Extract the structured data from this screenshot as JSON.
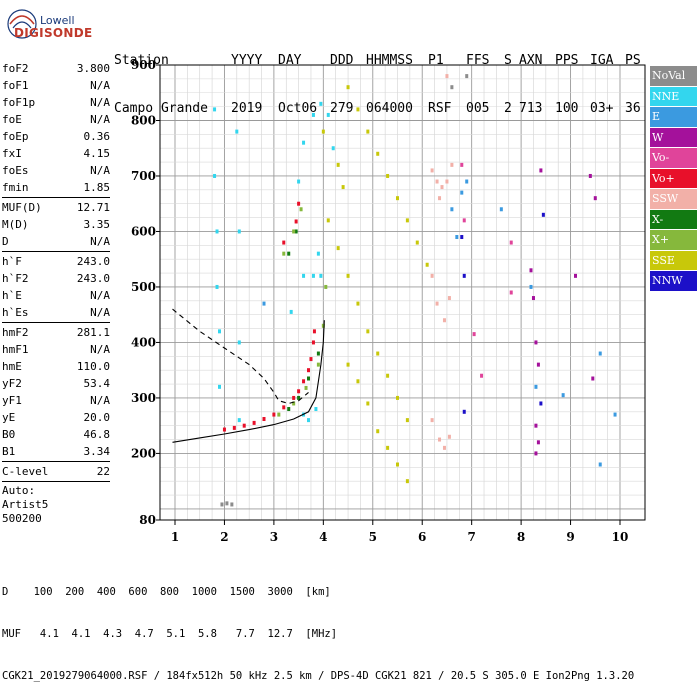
{
  "logo": {
    "top": "Lowell",
    "bottom": "DIGISONDE"
  },
  "header": {
    "row1": [
      "Station",
      "YYYY",
      "DAY",
      "DDD",
      "HHMMSS",
      "P1",
      "FFS",
      "S",
      "AXN",
      "PPS",
      "IGA",
      "PS"
    ],
    "row2": [
      "Campo Grande",
      "2019",
      "Oct06",
      "279",
      "064000",
      "RSF",
      "005",
      "2",
      "713",
      "100",
      "03+",
      "36"
    ]
  },
  "params": {
    "group1": [
      {
        "name": "foF2",
        "value": "3.800"
      },
      {
        "name": "foF1",
        "value": "N/A"
      },
      {
        "name": "foF1p",
        "value": "N/A"
      },
      {
        "name": "foE",
        "value": "N/A"
      },
      {
        "name": "foEp",
        "value": "0.36"
      },
      {
        "name": "fxI",
        "value": "4.15"
      },
      {
        "name": "foEs",
        "value": "N/A"
      },
      {
        "name": "fmin",
        "value": "1.85"
      }
    ],
    "group2": [
      {
        "name": "MUF(D)",
        "value": "12.71"
      },
      {
        "name": "M(D)",
        "value": "3.35"
      },
      {
        "name": "D",
        "value": "N/A"
      }
    ],
    "group3": [
      {
        "name": "h`F",
        "value": "243.0"
      },
      {
        "name": "h`F2",
        "value": "243.0"
      },
      {
        "name": "h`E",
        "value": "N/A"
      },
      {
        "name": "h`Es",
        "value": "N/A"
      }
    ],
    "group4": [
      {
        "name": "hmF2",
        "value": "281.1"
      },
      {
        "name": "hmF1",
        "value": "N/A"
      },
      {
        "name": "hmE",
        "value": "110.0"
      },
      {
        "name": "yF2",
        "value": "53.4"
      },
      {
        "name": "yF1",
        "value": "N/A"
      },
      {
        "name": "yE",
        "value": "20.0"
      },
      {
        "name": "B0",
        "value": "46.8"
      },
      {
        "name": "B1",
        "value": "3.34"
      }
    ],
    "group5": [
      {
        "name": "C-level",
        "value": "22"
      }
    ]
  },
  "autoscaling": {
    "line1": "Auto:",
    "line2": "Artist5",
    "line3": "500200"
  },
  "legend": [
    {
      "label": "NoVal",
      "color": "#8c8c8c"
    },
    {
      "label": "NNE",
      "color": "#33d6ee"
    },
    {
      "label": "E",
      "color": "#3b9ae0"
    },
    {
      "label": "W",
      "color": "#a4119b"
    },
    {
      "label": "Vo-",
      "color": "#e0449a"
    },
    {
      "label": "Vo+",
      "color": "#e8102a"
    },
    {
      "label": "SSW",
      "color": "#f2b0a8"
    },
    {
      "label": "X-",
      "color": "#127a12"
    },
    {
      "label": "X+",
      "color": "#86b83c"
    },
    {
      "label": "SSE",
      "color": "#c8c80a"
    },
    {
      "label": "NNW",
      "color": "#1c10c8"
    }
  ],
  "footer": {
    "d_row": "D    100  200  400  600  800  1000  1500  3000  [km]",
    "muf_row": "MUF   4.1  4.1  4.3  4.7  5.1  5.8   7.7  12.7  [MHz]",
    "file_row": "CGK21_2019279064000.RSF / 184fx512h 50 kHz 2.5 km / DPS-4D CGK21 821 / 20.5 S 305.0 E Ion2Png 1.3.20"
  },
  "chart_data": {
    "type": "scatter",
    "title": "",
    "xlabel": "",
    "ylabel": "",
    "xlim": [
      0.75,
      10.1
    ],
    "ylim": [
      80,
      900
    ],
    "x_ticks": [
      "1",
      "2",
      "3",
      "4",
      "5",
      "6",
      "7",
      "8",
      "9",
      "10"
    ],
    "y_ticks": [
      "80",
      "200",
      "300",
      "400",
      "500",
      "600",
      "700",
      "800",
      "900"
    ],
    "grid": true,
    "series": [
      {
        "name": "NNE",
        "color": "#33d6ee",
        "points": [
          [
            1.8,
            820
          ],
          [
            1.8,
            700
          ],
          [
            1.85,
            600
          ],
          [
            1.85,
            500
          ],
          [
            1.9,
            420
          ],
          [
            1.9,
            320
          ],
          [
            2.25,
            780
          ],
          [
            2.3,
            600
          ],
          [
            2.3,
            400
          ],
          [
            2.3,
            260
          ],
          [
            3.35,
            455
          ],
          [
            3.6,
            520
          ],
          [
            3.8,
            520
          ],
          [
            3.9,
            560
          ],
          [
            3.95,
            520
          ],
          [
            3.6,
            270
          ],
          [
            3.7,
            260
          ],
          [
            3.85,
            280
          ],
          [
            3.6,
            760
          ],
          [
            3.8,
            810
          ],
          [
            3.95,
            830
          ],
          [
            4.1,
            810
          ],
          [
            4.2,
            750
          ],
          [
            3.5,
            690
          ]
        ]
      },
      {
        "name": "E",
        "color": "#3b9ae0",
        "points": [
          [
            2.8,
            470
          ],
          [
            6.7,
            590
          ],
          [
            6.8,
            670
          ],
          [
            6.9,
            690
          ],
          [
            7.6,
            640
          ],
          [
            8.3,
            320
          ],
          [
            8.2,
            500
          ],
          [
            8.85,
            305
          ],
          [
            9.6,
            380
          ],
          [
            9.6,
            180
          ],
          [
            9.9,
            270
          ],
          [
            6.6,
            640
          ]
        ]
      },
      {
        "name": "W",
        "color": "#a4119b",
        "points": [
          [
            8.2,
            530
          ],
          [
            8.25,
            480
          ],
          [
            8.3,
            400
          ],
          [
            8.35,
            360
          ],
          [
            8.3,
            250
          ],
          [
            8.35,
            220
          ],
          [
            8.3,
            200
          ],
          [
            8.4,
            710
          ],
          [
            9.4,
            700
          ],
          [
            9.5,
            660
          ],
          [
            9.1,
            520
          ],
          [
            9.45,
            335
          ]
        ]
      },
      {
        "name": "Vo-",
        "color": "#e0449a",
        "points": [
          [
            7.2,
            340
          ],
          [
            6.8,
            720
          ],
          [
            6.85,
            620
          ],
          [
            7.05,
            415
          ],
          [
            7.8,
            490
          ],
          [
            7.8,
            580
          ]
        ]
      },
      {
        "name": "Vo+",
        "color": "#e8102a",
        "points": [
          [
            2.0,
            243
          ],
          [
            2.2,
            246
          ],
          [
            2.4,
            250
          ],
          [
            2.6,
            255
          ],
          [
            2.8,
            262
          ],
          [
            3.0,
            270
          ],
          [
            3.2,
            283
          ],
          [
            3.4,
            300
          ],
          [
            3.5,
            312
          ],
          [
            3.6,
            330
          ],
          [
            3.7,
            350
          ],
          [
            3.75,
            370
          ],
          [
            3.8,
            400
          ],
          [
            3.82,
            420
          ],
          [
            3.2,
            580
          ],
          [
            3.45,
            618
          ],
          [
            3.5,
            650
          ]
        ]
      },
      {
        "name": "SSW",
        "color": "#f2b0a8",
        "points": [
          [
            6.2,
            710
          ],
          [
            6.3,
            690
          ],
          [
            6.4,
            680
          ],
          [
            6.5,
            690
          ],
          [
            6.6,
            720
          ],
          [
            6.35,
            660
          ],
          [
            6.2,
            520
          ],
          [
            6.3,
            470
          ],
          [
            6.45,
            440
          ],
          [
            6.55,
            480
          ],
          [
            6.2,
            260
          ],
          [
            6.35,
            225
          ],
          [
            6.45,
            210
          ],
          [
            6.55,
            230
          ],
          [
            6.5,
            880
          ]
        ]
      },
      {
        "name": "X-",
        "color": "#127a12",
        "points": [
          [
            3.3,
            280
          ],
          [
            3.5,
            300
          ],
          [
            3.7,
            335
          ],
          [
            3.9,
            380
          ],
          [
            3.3,
            560
          ],
          [
            3.45,
            600
          ]
        ]
      },
      {
        "name": "X+",
        "color": "#86b83c",
        "points": [
          [
            3.1,
            270
          ],
          [
            3.4,
            290
          ],
          [
            3.65,
            318
          ],
          [
            3.9,
            360
          ],
          [
            4.0,
            430
          ],
          [
            4.05,
            500
          ],
          [
            3.2,
            560
          ],
          [
            3.4,
            600
          ],
          [
            3.55,
            640
          ]
        ]
      },
      {
        "name": "SSE",
        "color": "#c8c80a",
        "points": [
          [
            4.1,
            620
          ],
          [
            4.3,
            570
          ],
          [
            4.5,
            520
          ],
          [
            4.7,
            470
          ],
          [
            4.9,
            420
          ],
          [
            5.1,
            380
          ],
          [
            5.3,
            340
          ],
          [
            5.5,
            300
          ],
          [
            5.7,
            260
          ],
          [
            4.5,
            360
          ],
          [
            4.7,
            330
          ],
          [
            4.9,
            290
          ],
          [
            5.1,
            240
          ],
          [
            5.3,
            210
          ],
          [
            5.5,
            180
          ],
          [
            5.7,
            150
          ],
          [
            4.5,
            860
          ],
          [
            4.7,
            820
          ],
          [
            4.9,
            780
          ],
          [
            5.1,
            740
          ],
          [
            5.3,
            700
          ],
          [
            5.5,
            660
          ],
          [
            5.7,
            620
          ],
          [
            5.9,
            580
          ],
          [
            6.1,
            540
          ],
          [
            4.0,
            780
          ],
          [
            4.3,
            720
          ],
          [
            4.4,
            680
          ]
        ]
      },
      {
        "name": "NNW",
        "color": "#1c10c8",
        "points": [
          [
            6.8,
            590
          ],
          [
            6.85,
            520
          ],
          [
            6.85,
            275
          ],
          [
            8.4,
            290
          ],
          [
            8.45,
            630
          ]
        ]
      },
      {
        "name": "NoVal",
        "color": "#8c8c8c",
        "points": [
          [
            1.95,
            108
          ],
          [
            2.05,
            110
          ],
          [
            2.15,
            108
          ],
          [
            6.6,
            860
          ],
          [
            6.9,
            880
          ]
        ]
      }
    ],
    "traces": [
      {
        "style": "dashed",
        "color": "#000000",
        "points": [
          [
            0.95,
            460
          ],
          [
            1.5,
            420
          ],
          [
            2.0,
            390
          ],
          [
            2.5,
            360
          ],
          [
            2.8,
            335
          ],
          [
            3.0,
            310
          ],
          [
            3.1,
            295
          ],
          [
            3.3,
            290
          ],
          [
            3.5,
            295
          ],
          [
            3.7,
            310
          ]
        ]
      },
      {
        "style": "solid",
        "color": "#000000",
        "points": [
          [
            0.95,
            220
          ],
          [
            1.5,
            228
          ],
          [
            2.0,
            235
          ],
          [
            2.5,
            243
          ],
          [
            3.0,
            252
          ],
          [
            3.4,
            262
          ],
          [
            3.7,
            275
          ],
          [
            3.85,
            300
          ],
          [
            3.9,
            330
          ],
          [
            3.95,
            360
          ],
          [
            4.0,
            400
          ],
          [
            4.02,
            440
          ]
        ]
      }
    ]
  }
}
